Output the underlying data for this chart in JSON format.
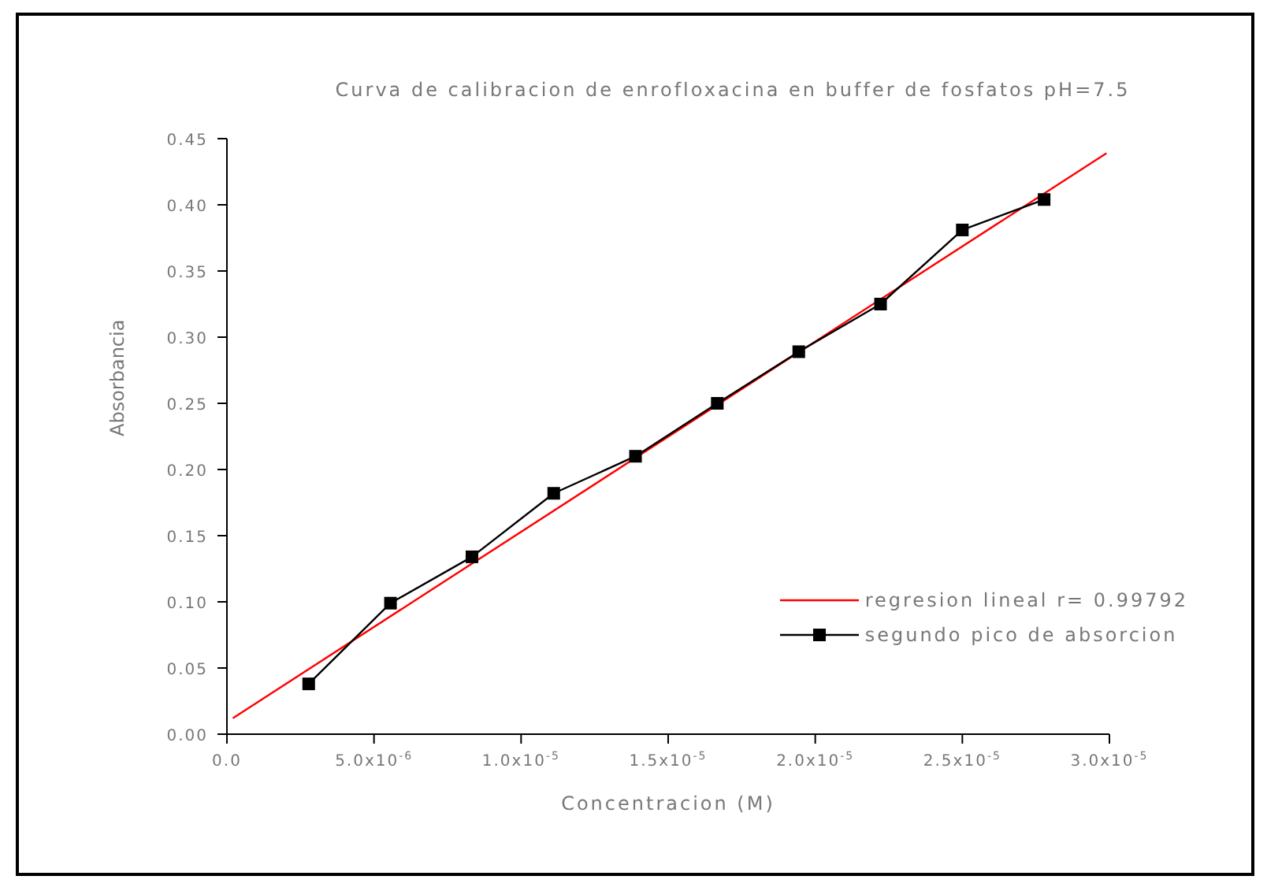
{
  "chart_data": {
    "type": "line",
    "title": "Curva de calibracion de enrofloxacina en buffer de fosfatos pH=7.5",
    "xlabel": "Concentracion (M)",
    "ylabel": "Absorbancia",
    "x": [
      2.78e-06,
      5.56e-06,
      8.33e-06,
      1.111e-05,
      1.389e-05,
      1.667e-05,
      1.944e-05,
      2.222e-05,
      2.5e-05,
      2.778e-05
    ],
    "series": [
      {
        "name": "regresion lineal r= 0.99792",
        "color": "#ff0000",
        "marker": "none",
        "x": [
          2e-07,
          2.99e-05
        ],
        "values": [
          0.012,
          0.439
        ]
      },
      {
        "name": "segundo pico de absorcion",
        "color": "#000000",
        "marker": "square",
        "values": [
          0.038,
          0.099,
          0.134,
          0.182,
          0.21,
          0.25,
          0.289,
          0.325,
          0.381,
          0.404
        ]
      }
    ],
    "xlim": [
      0,
      3e-05
    ],
    "xticks": [
      {
        "value": 0,
        "label": "0.0"
      },
      {
        "value": 5e-06,
        "label": "5.0x10$^{-6}$"
      },
      {
        "value": 1e-05,
        "label": "1.0x10$^{-5}$"
      },
      {
        "value": 1.5e-05,
        "label": "1.5x10$^{-5}$"
      },
      {
        "value": 2e-05,
        "label": "2.0x10$^{-5}$"
      },
      {
        "value": 2.5e-05,
        "label": "2.5x10$^{-5}$"
      },
      {
        "value": 3e-05,
        "label": "3.0x10$^{-5}$"
      }
    ],
    "ylim": [
      0,
      0.45
    ],
    "yticks": [
      {
        "value": 0,
        "label": "0.00"
      },
      {
        "value": 0.05,
        "label": "0.05"
      },
      {
        "value": 0.1,
        "label": "0.10"
      },
      {
        "value": 0.15,
        "label": "0.15"
      },
      {
        "value": 0.2,
        "label": "0.20"
      },
      {
        "value": 0.25,
        "label": "0.25"
      },
      {
        "value": 0.3,
        "label": "0.30"
      },
      {
        "value": 0.35,
        "label": "0.35"
      },
      {
        "value": 0.4,
        "label": "0.40"
      },
      {
        "value": 0.45,
        "label": "0.45"
      }
    ],
    "grid": false,
    "legend": "bottom right"
  }
}
